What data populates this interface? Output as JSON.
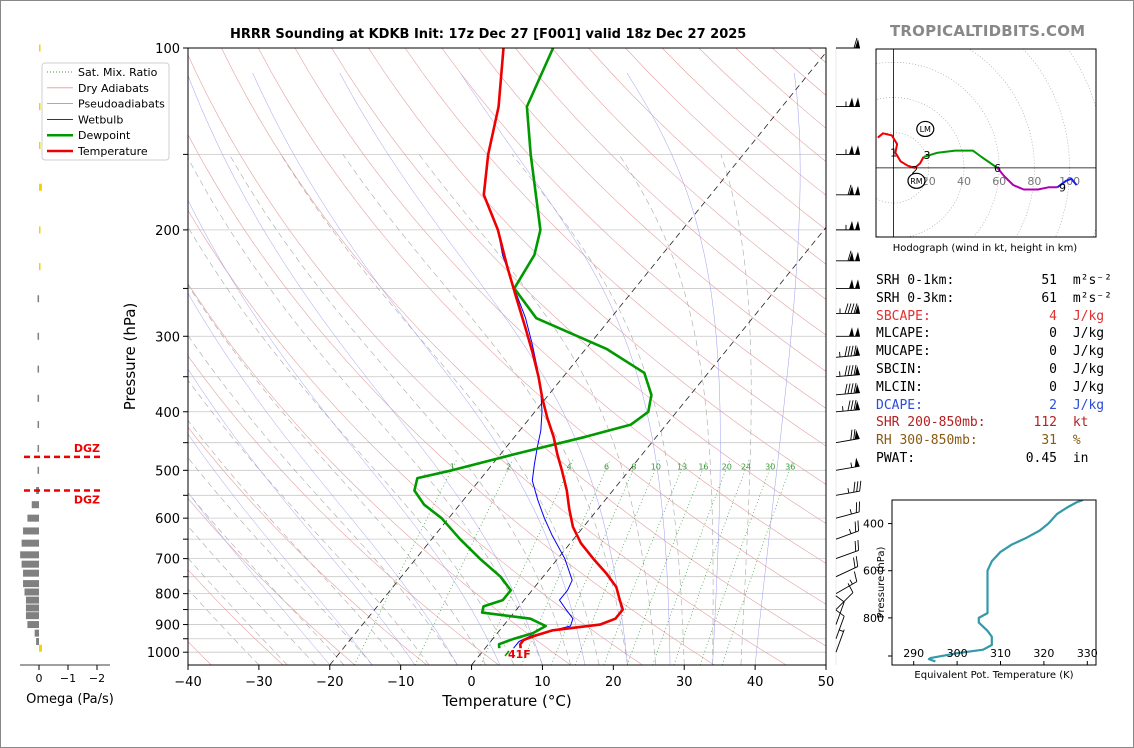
{
  "header": {
    "title": "HRRR Sounding at KDKB Init: 17z Dec 27 [F001] valid 18z Dec 27 2025",
    "brand": "TROPICALTIDBITS.COM"
  },
  "legend": [
    {
      "label": "Sat. Mix. Ratio",
      "color": "#3a9a3a",
      "style": "dotted"
    },
    {
      "label": "Dry Adiabats",
      "color": "#e89a9a",
      "style": "solid"
    },
    {
      "label": "Pseudoadiabats",
      "color": "#a0a0a0",
      "style": "solid"
    },
    {
      "label": "Wetbulb",
      "color": "#0000ff",
      "style": "solid"
    },
    {
      "label": "Dewpoint",
      "color": "#009900",
      "style": "thick"
    },
    {
      "label": "Temperature",
      "color": "#ee0000",
      "style": "thick"
    }
  ],
  "skewt": {
    "xlabel": "Temperature (°C)",
    "ylabel": "Pressure (hPa)",
    "x_ticks": [
      "−40",
      "−30",
      "−20",
      "−10",
      "0",
      "10",
      "20",
      "30",
      "40",
      "50"
    ],
    "y_ticks": [
      "100",
      "200",
      "300",
      "400",
      "500",
      "600",
      "700",
      "800",
      "900",
      "1000"
    ],
    "mixing_ratio_labels": [
      "1",
      "2",
      "4",
      "6",
      "8",
      "10",
      "13",
      "16",
      "20",
      "24",
      "30",
      "36"
    ],
    "surface_label": "41F"
  },
  "chart_data": [
    {
      "type": "line",
      "name": "skew-t",
      "xlabel": "Temperature (°C)",
      "ylabel": "Pressure (hPa)",
      "xlim": [
        -40,
        50
      ],
      "ylim": [
        1050,
        100
      ],
      "y_scale": "log",
      "series": [
        {
          "name": "Temperature",
          "color": "#ee0000",
          "p": [
            985,
            970,
            955,
            940,
            920,
            900,
            880,
            850,
            820,
            780,
            740,
            700,
            660,
            620,
            580,
            540,
            500,
            470,
            440,
            410,
            380,
            350,
            320,
            290,
            260,
            230,
            200,
            175,
            150,
            125,
            100
          ],
          "t": [
            5,
            4.5,
            4.5,
            5.5,
            7.5,
            13.5,
            15,
            15,
            13.5,
            11.5,
            8.5,
            5,
            1.5,
            -1.5,
            -4,
            -6.5,
            -9.5,
            -12,
            -14.5,
            -17.5,
            -20.5,
            -23.5,
            -27,
            -31,
            -35.5,
            -40.5,
            -46,
            -52,
            -56,
            -60,
            -66
          ]
        },
        {
          "name": "Dewpoint",
          "color": "#009900",
          "p": [
            985,
            970,
            950,
            930,
            905,
            880,
            860,
            840,
            820,
            790,
            750,
            700,
            650,
            600,
            570,
            540,
            515,
            500,
            470,
            440,
            420,
            400,
            375,
            345,
            315,
            280,
            250,
            220,
            200,
            150,
            125,
            100
          ],
          "t": [
            2,
            1.5,
            3,
            5,
            6,
            3,
            -4.5,
            -5,
            -3,
            -3,
            -6,
            -11,
            -16,
            -21,
            -25,
            -28,
            -29,
            -25,
            -18,
            -10,
            -5,
            -4,
            -5.5,
            -9,
            -17,
            -30.5,
            -37,
            -38,
            -40,
            -50,
            -56,
            -59
          ]
        },
        {
          "name": "Wetbulb",
          "color": "#0000ff",
          "p": [
            985,
            960,
            940,
            905,
            880,
            850,
            820,
            790,
            760,
            700,
            640,
            600,
            560,
            520,
            490,
            460,
            430,
            400,
            370,
            340,
            310,
            280,
            250,
            220,
            200
          ],
          "t": [
            4,
            4,
            5,
            9.5,
            9,
            7,
            5,
            5,
            4.5,
            1,
            -3.5,
            -6.5,
            -9.5,
            -12.5,
            -14,
            -15.5,
            -17,
            -19,
            -21.5,
            -24.5,
            -28,
            -32,
            -37,
            -42.5,
            -46
          ]
        }
      ]
    },
    {
      "type": "line",
      "name": "hodograph",
      "xlim": [
        -10,
        115
      ],
      "ylim": [
        -32,
        55
      ],
      "ring_labels": [
        "20",
        "40",
        "60",
        "80",
        "100"
      ],
      "height_labels": [
        {
          "text": "1",
          "u": 0,
          "v": 7
        },
        {
          "text": "2",
          "u": 12,
          "v": -1
        },
        {
          "text": "3",
          "u": 19,
          "v": 6
        },
        {
          "text": "6",
          "u": 59,
          "v": 0
        },
        {
          "text": "9",
          "u": 96,
          "v": -9
        }
      ],
      "markers": [
        {
          "text": "LM",
          "u": 18,
          "v": 18
        },
        {
          "text": "RM",
          "u": 13,
          "v": -6
        }
      ],
      "series": [
        {
          "name": "0-3km",
          "color": "#ee0000",
          "u": [
            -9,
            -6,
            -1,
            2,
            1,
            4,
            8,
            12,
            15,
            17
          ],
          "v": [
            14,
            16,
            15,
            11,
            7,
            3,
            1,
            0,
            2,
            5
          ]
        },
        {
          "name": "3-6km",
          "color": "#009900",
          "u": [
            17,
            25,
            35,
            45,
            50,
            59
          ],
          "v": [
            5,
            7,
            8,
            8,
            5,
            0
          ]
        },
        {
          "name": "6-9km",
          "color": "#b000b0",
          "u": [
            59,
            63,
            68,
            74,
            82,
            88,
            93
          ],
          "v": [
            0,
            -4,
            -8,
            -10,
            -10,
            -9,
            -9
          ]
        },
        {
          "name": "9+km",
          "color": "#1a1aff",
          "u": [
            93,
            98,
            101,
            104
          ],
          "v": [
            -9,
            -6,
            -5,
            -8
          ]
        }
      ],
      "caption": "Hodograph (wind in kt, height in km)"
    },
    {
      "type": "line",
      "name": "theta-e",
      "xlabel": "Equivalent Pot. Temperature (K)",
      "ylabel": "Pressure (hPa)",
      "xlim": [
        285,
        332
      ],
      "ylim": [
        1000,
        300
      ],
      "x_ticks": [
        "290",
        "300",
        "310",
        "320",
        "330"
      ],
      "y_ticks": [
        "400",
        "600",
        "800"
      ],
      "series": [
        {
          "name": "theta-e",
          "color": "#3399aa",
          "p": [
            985,
            975,
            970,
            950,
            935,
            915,
            880,
            855,
            820,
            800,
            780,
            700,
            640,
            600,
            560,
            520,
            490,
            460,
            430,
            400,
            360,
            330,
            310,
            300
          ],
          "theta": [
            295,
            293.5,
            294,
            300,
            306,
            308,
            308,
            307,
            305,
            305,
            307,
            307,
            307,
            307,
            308,
            310,
            312.5,
            316,
            319,
            321,
            323,
            325.5,
            327.5,
            329
          ]
        }
      ]
    },
    {
      "type": "bar",
      "name": "omega",
      "xlabel": "Omega (Pa/s)",
      "x_ticks": [
        "0",
        "−1",
        "−2"
      ],
      "dgz_label": "DGZ",
      "dgz_p": [
        475,
        540
      ],
      "p": [
        985,
        960,
        930,
        900,
        870,
        845,
        820,
        795,
        770,
        740,
        715,
        690,
        660,
        630,
        600,
        570,
        540,
        500,
        460,
        420,
        380,
        340,
        300,
        260,
        230,
        200,
        170,
        145,
        125,
        100
      ],
      "omega": [
        -0.1,
        0.1,
        0.15,
        0.4,
        0.45,
        0.45,
        0.45,
        0.5,
        0.55,
        0.55,
        0.6,
        0.65,
        0.6,
        0.55,
        0.4,
        0.25,
        0.1,
        0.05,
        0.05,
        0.05,
        0.05,
        0.05,
        0.05,
        0.05,
        -0.05,
        -0.05,
        -0.1,
        -0.05,
        -0.05,
        -0.05
      ]
    }
  ],
  "winds": {
    "pressures": [
      100,
      125,
      150,
      175,
      200,
      225,
      250,
      275,
      300,
      325,
      350,
      375,
      400,
      450,
      500,
      550,
      600,
      650,
      700,
      750,
      800,
      850,
      900,
      950,
      1000
    ],
    "speeds_kt": [
      60,
      105,
      105,
      110,
      105,
      110,
      100,
      95,
      100,
      95,
      95,
      90,
      85,
      70,
      55,
      35,
      25,
      25,
      20,
      20,
      15,
      10,
      10,
      10,
      5
    ],
    "dirs_deg": [
      270,
      270,
      270,
      270,
      270,
      270,
      270,
      270,
      270,
      265,
      265,
      265,
      265,
      260,
      260,
      260,
      255,
      250,
      250,
      245,
      240,
      225,
      200,
      200,
      200
    ]
  },
  "stats": [
    {
      "label": "SRH 0-1km:",
      "value": "51",
      "unit": "m²s⁻²",
      "color": "#000000"
    },
    {
      "label": "SRH 0-3km:",
      "value": "61",
      "unit": "m²s⁻²",
      "color": "#000000"
    },
    {
      "label": "SBCAPE:",
      "value": "4",
      "unit": "J/kg",
      "color": "#e03030"
    },
    {
      "label": "MLCAPE:",
      "value": "0",
      "unit": "J/kg",
      "color": "#000000"
    },
    {
      "label": "MUCAPE:",
      "value": "0",
      "unit": "J/kg",
      "color": "#000000"
    },
    {
      "label": "SBCIN:",
      "value": "0",
      "unit": "J/kg",
      "color": "#000000"
    },
    {
      "label": "MLCIN:",
      "value": "0",
      "unit": "J/kg",
      "color": "#000000"
    },
    {
      "label": "DCAPE:",
      "value": "2",
      "unit": "J/kg",
      "color": "#2a4cd8"
    },
    {
      "label": "SHR 200-850mb:",
      "value": "112",
      "unit": "kt",
      "color": "#b52020"
    },
    {
      "label": "RH 300-850mb:",
      "value": "31",
      "unit": "%",
      "color": "#8a5a10"
    },
    {
      "label": "PWAT:",
      "value": "0.45",
      "unit": "in",
      "color": "#000000"
    }
  ]
}
